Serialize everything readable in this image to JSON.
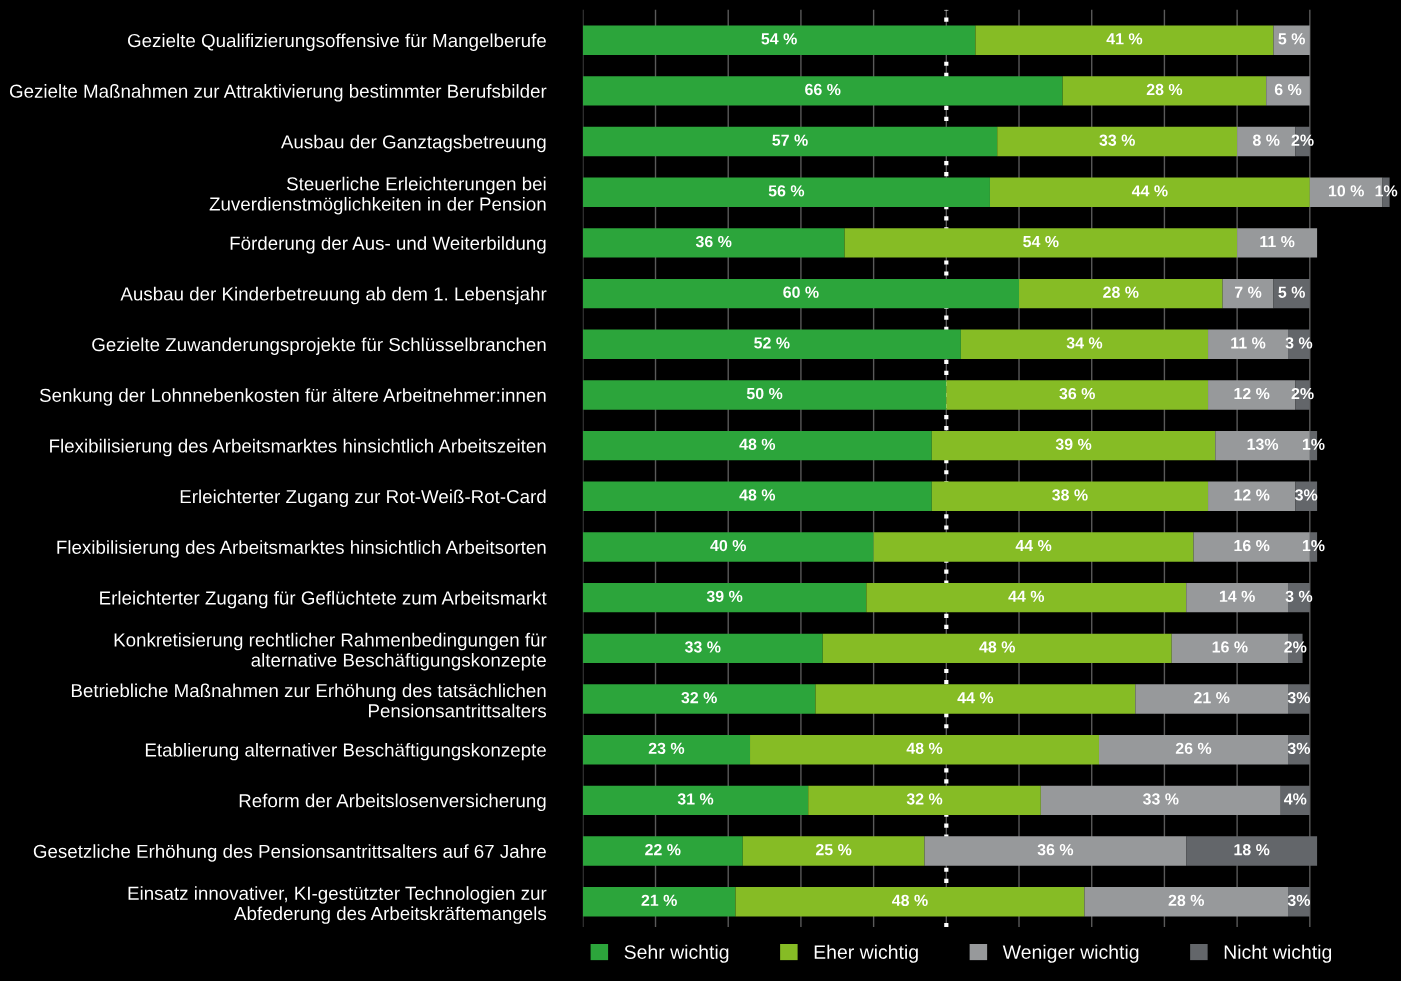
{
  "chart_data": {
    "type": "bar",
    "orientation": "horizontal",
    "stacked": true,
    "categories": [
      "Gezielte Qualifizierungsoffensive für Mangelberufe",
      "Gezielte Maßnahmen zur Attraktivierung bestimmter Berufsbilder",
      "Ausbau der Ganztagsbetreuung",
      "Steuerliche Erleichterungen bei\nZuverdienstmöglichkeiten in der Pension",
      "Förderung der Aus- und Weiterbildung",
      "Ausbau der Kinderbetreuung ab dem 1. Lebensjahr",
      "Gezielte Zuwanderungsprojekte für Schlüsselbranchen",
      "Senkung der Lohnnebenkosten für ältere Arbeitnehmer:innen",
      "Flexibilisierung des Arbeitsmarktes hinsichtlich Arbeitszeiten",
      "Erleichterter Zugang zur Rot-Weiß-Rot-Card",
      "Flexibilisierung des Arbeitsmarktes hinsichtlich Arbeitsorten",
      "Erleichterter Zugang für Geflüchtete zum Arbeitsmarkt",
      "Konkretisierung rechtlicher Rahmenbedingungen für\nalternative Beschäftigungskonzepte",
      "Betriebliche Maßnahmen zur Erhöhung des tatsächlichen\nPensionsantrittsalters",
      "Etablierung alternativer Beschäftigungskonzepte",
      "Reform der Arbeitslosenversicherung",
      "Gesetzliche Erhöhung des Pensionsantrittsalters auf 67 Jahre",
      "Einsatz innovativer, KI-gestützter Technologien zur\nAbfederung des Arbeitskräftemangels"
    ],
    "series": [
      {
        "name": "Sehr wichtig",
        "color": "#2ca53b",
        "values": [
          54,
          66,
          57,
          56,
          36,
          60,
          52,
          50,
          48,
          48,
          40,
          39,
          33,
          32,
          23,
          31,
          22,
          21
        ],
        "value_labels": [
          "54 %",
          "66 %",
          "57 %",
          "56 %",
          "36 %",
          "60 %",
          "52 %",
          "50 %",
          "48 %",
          "48 %",
          "40 %",
          "39 %",
          "33 %",
          "32 %",
          "23 %",
          "31 %",
          "22 %",
          "21 %"
        ]
      },
      {
        "name": "Eher wichtig",
        "color": "#86bc25",
        "values": [
          41,
          28,
          33,
          44,
          54,
          28,
          34,
          36,
          39,
          38,
          44,
          44,
          48,
          44,
          48,
          32,
          25,
          48
        ],
        "value_labels": [
          "41 %",
          "28 %",
          "33 %",
          "44 %",
          "54 %",
          "28 %",
          "34 %",
          "36 %",
          "39 %",
          "38 %",
          "44 %",
          "44 %",
          "48 %",
          "44 %",
          "48 %",
          "32 %",
          "25 %",
          "48 %"
        ]
      },
      {
        "name": "Weniger wichtig",
        "color": "#97999b",
        "values": [
          5,
          6,
          8,
          10,
          11,
          7,
          11,
          12,
          13,
          12,
          16,
          14,
          16,
          21,
          26,
          33,
          36,
          28
        ],
        "value_labels": [
          "5 %",
          "6 %",
          "8 %",
          "10 %",
          "11 %",
          "7 %",
          "11 %",
          "12 %",
          "13%",
          "12 %",
          "16 %",
          "14 %",
          "16 %",
          "21 %",
          "26 %",
          "33 %",
          "36 %",
          "28 %"
        ]
      },
      {
        "name": "Nicht wichtig",
        "color": "#63666a",
        "values": [
          null,
          null,
          2,
          1,
          null,
          5,
          3,
          2,
          1,
          3,
          1,
          3,
          2,
          3,
          3,
          4,
          18,
          3
        ],
        "value_labels": [
          null,
          null,
          "2%",
          "1%",
          null,
          "5 %",
          "3 %",
          "2%",
          "1%",
          "3%",
          "1%",
          "3 %",
          "2%",
          "3%",
          "3%",
          "4%",
          "18 %",
          "3%"
        ]
      }
    ],
    "xlim": [
      0,
      111
    ],
    "xticks": [
      {
        "value": 0,
        "label": null
      },
      {
        "value": 10,
        "label": null
      },
      {
        "value": 20,
        "label": null
      },
      {
        "value": 30,
        "label": null
      },
      {
        "value": 40,
        "label": null
      },
      {
        "value": 50,
        "label": null
      },
      {
        "value": 60,
        "label": null
      },
      {
        "value": 70,
        "label": null
      },
      {
        "value": 80,
        "label": null
      },
      {
        "value": 90,
        "label": null
      },
      {
        "value": 100,
        "label": null
      }
    ],
    "tick_labels": "y",
    "grid": "x",
    "legend": "bottom",
    "ref_lines": [
      {
        "axis": "x",
        "value": 50,
        "color": "#ffffff",
        "line_style": "dotted"
      }
    ]
  }
}
